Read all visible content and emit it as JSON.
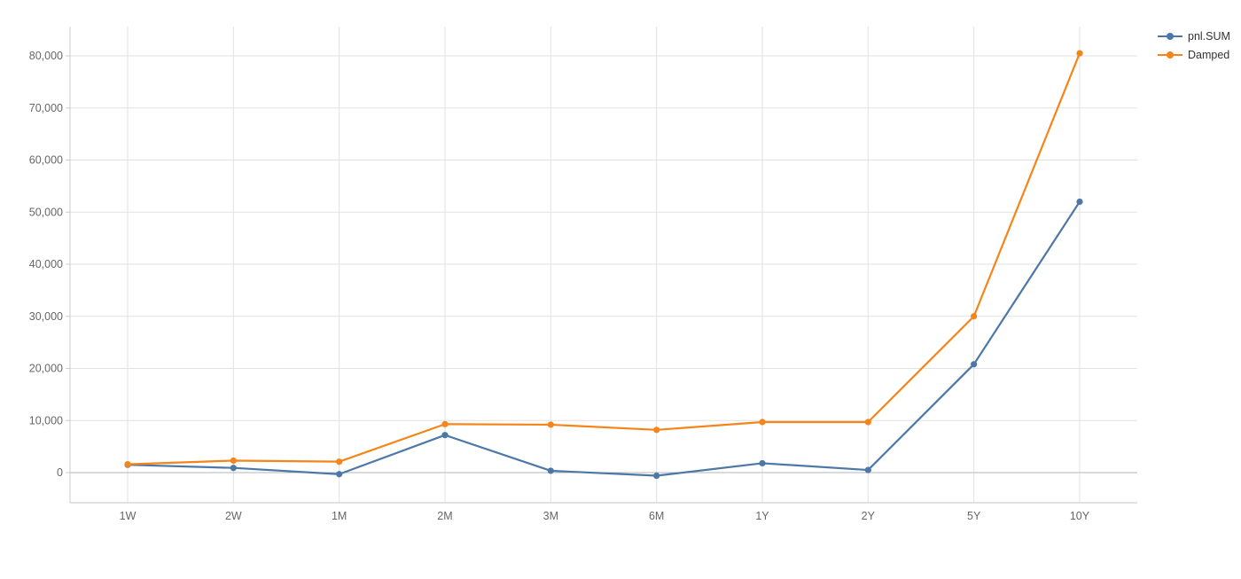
{
  "colors": {
    "background": "#ffffff",
    "blue": "#4c78a8",
    "orange": "#f58518",
    "grid": "#e2e2e2",
    "zero_line": "#b5b5b5",
    "axis_line": "#cccccc",
    "bottom_axis_line": "#c4c4c4",
    "tick_label": "#666666",
    "legend_text": "#333333"
  },
  "legend": {
    "position": "top-right",
    "items": [
      {
        "label": "pnl.SUM",
        "color": "#4c78a8"
      },
      {
        "label": "Damped",
        "color": "#f58518"
      }
    ]
  },
  "chart_data": {
    "type": "line",
    "categories": [
      "1W",
      "2W",
      "1M",
      "2M",
      "3M",
      "6M",
      "1Y",
      "2Y",
      "5Y",
      "10Y"
    ],
    "series": [
      {
        "name": "pnl.SUM",
        "color": "#4c78a8",
        "values": [
          1500,
          900,
          -300,
          7200,
          350,
          -600,
          1800,
          500,
          20800,
          52000
        ]
      },
      {
        "name": "Damped",
        "color": "#f58518",
        "values": [
          1600,
          2300,
          2100,
          9300,
          9200,
          8200,
          9700,
          9700,
          30000,
          80500
        ]
      }
    ],
    "title": "",
    "xlabel": "",
    "ylabel": "",
    "ylim": [
      -5800,
      85600
    ],
    "yticks": [
      0,
      10000,
      20000,
      30000,
      40000,
      50000,
      60000,
      70000,
      80000
    ],
    "ytick_labels": [
      "0",
      "10,000",
      "20,000",
      "30,000",
      "40,000",
      "50,000",
      "60,000",
      "70,000",
      "80,000"
    ],
    "grid": true,
    "marker": "circle",
    "legend_position": "top-right"
  }
}
